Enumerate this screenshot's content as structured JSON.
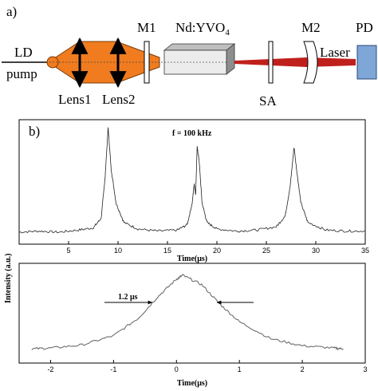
{
  "panel_a": {
    "label": "a)",
    "ld_pump": [
      "LD",
      "pump"
    ],
    "lens1": "Lens1",
    "lens2": "Lens2",
    "m1": "M1",
    "crystal": "Nd:YVO",
    "crystal_subscript": "4",
    "sa": "SA",
    "m2": "M2",
    "laser": "Laser",
    "pd": "PD",
    "colors": {
      "pump_beam": "#f07c1f",
      "laser_beam": "#c0201c",
      "crystal_front": "#ececec",
      "crystal_top": "#bfbfbf",
      "crystal_side": "#8e8e8e",
      "detector": "#7ea6d6"
    }
  },
  "panel_b": {
    "label": "b)",
    "annotation": "f = 100 kHz",
    "ylabel": "Intensity (a.u.)",
    "width_label": "1.2 μs"
  },
  "chart_data": [
    {
      "type": "line",
      "title": "",
      "annotation": "f = 100 kHz",
      "xlabel": "Time(μs)",
      "ylabel": "Intensity (a.u.)",
      "xlim": [
        0,
        35
      ],
      "xticks": [
        5,
        10,
        15,
        20,
        25,
        30,
        35
      ],
      "series": [
        {
          "x": [
            0,
            2,
            4,
            6,
            7.5,
            8.3,
            8.7,
            9.0,
            9.3,
            9.8,
            10.6,
            12,
            14,
            16,
            17.0,
            17.5,
            17.7,
            17.85,
            18.0,
            18.2,
            18.5,
            19.0,
            20,
            22,
            24,
            26,
            26.9,
            27.4,
            27.8,
            28.1,
            28.5,
            29.2,
            31,
            33,
            35
          ],
          "y": [
            0.03,
            0.04,
            0.03,
            0.05,
            0.07,
            0.16,
            0.55,
            1.0,
            0.62,
            0.3,
            0.12,
            0.06,
            0.04,
            0.05,
            0.1,
            0.3,
            0.48,
            0.38,
            0.82,
            0.7,
            0.3,
            0.12,
            0.06,
            0.04,
            0.05,
            0.08,
            0.18,
            0.45,
            0.82,
            0.58,
            0.3,
            0.12,
            0.05,
            0.04,
            0.04
          ]
        }
      ]
    },
    {
      "type": "line",
      "title": "",
      "xlabel": "Time(μs)",
      "ylabel": "Intensity (a.u.)",
      "xlim": [
        -2.5,
        3
      ],
      "xticks": [
        -2,
        -1,
        0,
        1,
        2,
        3
      ],
      "pulse_width_us": 1.2,
      "series": [
        {
          "x": [
            -2.3,
            -2.0,
            -1.5,
            -1.0,
            -0.6,
            -0.3,
            0,
            0.1,
            0.4,
            0.7,
            1.0,
            1.5,
            2.0,
            2.5,
            2.65
          ],
          "y": [
            0.05,
            0.06,
            0.1,
            0.22,
            0.45,
            0.72,
            0.95,
            1.0,
            0.88,
            0.62,
            0.4,
            0.18,
            0.09,
            0.06,
            0.05
          ]
        }
      ]
    }
  ]
}
